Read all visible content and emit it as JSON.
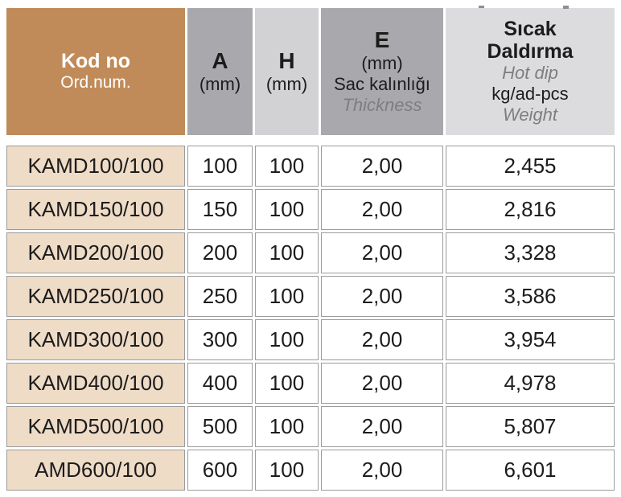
{
  "colors": {
    "header_kod_bg": "#C18B59",
    "header_gray_dark": "#A9A9AD",
    "header_gray_mid": "#D2D2D4",
    "header_gray_light": "#DCDCDE",
    "row_code_bg": "#EFDCC7",
    "cell_border": "#9B9B9B",
    "text_primary": "#1C1C1C",
    "text_secondary": "#7E7E81",
    "text_inverse": "#FFFFFF"
  },
  "header": {
    "kod": {
      "title": "Kod no",
      "subtitle": "Ord.num."
    },
    "a": {
      "title": "A",
      "unit": "(mm)"
    },
    "h": {
      "title": "H",
      "unit": "(mm)"
    },
    "e": {
      "title": "E",
      "unit": "(mm)",
      "label_tr": "Sac kalınlığı",
      "label_en": "Thickness"
    },
    "w": {
      "title_line1": "Sıcak",
      "title_line2": "Daldırma",
      "label_en": "Hot dip",
      "unit": "kg/ad-pcs",
      "label_en2": "Weight"
    }
  },
  "rows": [
    {
      "kod": "KAMD100/100",
      "a": "100",
      "h": "100",
      "e": "2,00",
      "w": "2,455"
    },
    {
      "kod": "KAMD150/100",
      "a": "150",
      "h": "100",
      "e": "2,00",
      "w": "2,816"
    },
    {
      "kod": "KAMD200/100",
      "a": "200",
      "h": "100",
      "e": "2,00",
      "w": "3,328"
    },
    {
      "kod": "KAMD250/100",
      "a": "250",
      "h": "100",
      "e": "2,00",
      "w": "3,586"
    },
    {
      "kod": "KAMD300/100",
      "a": "300",
      "h": "100",
      "e": "2,00",
      "w": "3,954"
    },
    {
      "kod": "KAMD400/100",
      "a": "400",
      "h": "100",
      "e": "2,00",
      "w": "4,978"
    },
    {
      "kod": "KAMD500/100",
      "a": "500",
      "h": "100",
      "e": "2,00",
      "w": "5,807"
    },
    {
      "kod": "AMD600/100",
      "a": "600",
      "h": "100",
      "e": "2,00",
      "w": "6,601"
    }
  ]
}
